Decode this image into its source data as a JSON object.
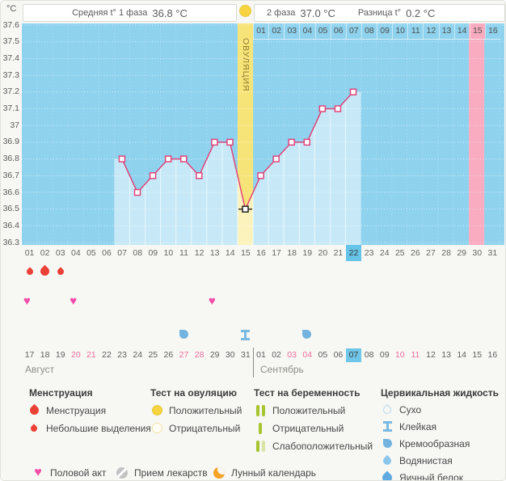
{
  "header": {
    "unit": "°C",
    "avg_phase1_label": "Средняя t° 1 фаза",
    "avg_phase1_value": "36.8 °C",
    "phase2_label": "2 фаза",
    "phase2_value": "37.0 °C",
    "diff_label": "Разница t°",
    "diff_value": "0.2 °C"
  },
  "chart_data": {
    "type": "line",
    "ylabel": "°C",
    "ylim": [
      36.3,
      37.6
    ],
    "y_ticks": [
      "37.6",
      "37.5",
      "37.4",
      "37.3",
      "37.2",
      "37.1",
      "37",
      "36.9",
      "36.8",
      "36.7",
      "36.6",
      "36.5",
      "36.4",
      "36.3"
    ],
    "grid": "dotted-white",
    "ovulation_label": "ОВУЛЯЦИЯ",
    "ovulation_day": 15,
    "predicted_period_day": 30,
    "current_day": 22,
    "cycle_days": [
      "01",
      "02",
      "03",
      "04",
      "05",
      "06",
      "07",
      "08",
      "09",
      "10",
      "11",
      "12",
      "13",
      "14",
      "15",
      "16",
      "17",
      "18",
      "19",
      "20",
      "21",
      "22",
      "23",
      "24",
      "25",
      "26",
      "27",
      "28",
      "29",
      "30",
      "31"
    ],
    "luteal_day_labels": [
      "01",
      "02",
      "03",
      "04",
      "05",
      "06",
      "07",
      "08",
      "09",
      "10",
      "11",
      "12",
      "13",
      "14",
      "15",
      "16"
    ],
    "luteal_highlight": "15",
    "temps": [
      {
        "day": 7,
        "temp": 36.8
      },
      {
        "day": 8,
        "temp": 36.6
      },
      {
        "day": 9,
        "temp": 36.7
      },
      {
        "day": 10,
        "temp": 36.8
      },
      {
        "day": 11,
        "temp": 36.8
      },
      {
        "day": 12,
        "temp": 36.7
      },
      {
        "day": 13,
        "temp": 36.9
      },
      {
        "day": 14,
        "temp": 36.9
      },
      {
        "day": 15,
        "temp": 36.5,
        "event": "ovulation"
      },
      {
        "day": 16,
        "temp": 36.7
      },
      {
        "day": 17,
        "temp": 36.8
      },
      {
        "day": 18,
        "temp": 36.9
      },
      {
        "day": 19,
        "temp": 36.9
      },
      {
        "day": 20,
        "temp": 37.1
      },
      {
        "day": 21,
        "temp": 37.1
      },
      {
        "day": 22,
        "temp": 37.2
      }
    ],
    "events": {
      "menstruation": [
        {
          "day": 1,
          "size": "small"
        },
        {
          "day": 2,
          "size": "large"
        },
        {
          "day": 3,
          "size": "small"
        }
      ],
      "intercourse_days": [
        1,
        4,
        13
      ],
      "cervical_fluid": [
        {
          "day": 11,
          "type": "creamy"
        },
        {
          "day": 15,
          "type": "sticky"
        },
        {
          "day": 19,
          "type": "creamy"
        }
      ]
    },
    "calendar": {
      "aug": {
        "label": "Август",
        "days": [
          "17",
          "18",
          "19",
          "20",
          "21",
          "22",
          "23",
          "24",
          "25",
          "26",
          "27",
          "28",
          "29",
          "30",
          "31"
        ],
        "weekend": [
          "20",
          "21",
          "27",
          "28"
        ]
      },
      "sep": {
        "label": "Сентябрь",
        "days": [
          "01",
          "02",
          "03",
          "04",
          "05",
          "06",
          "07",
          "08",
          "09",
          "10",
          "11",
          "12",
          "13",
          "14",
          "15",
          "16"
        ],
        "weekend": [
          "03",
          "04",
          "10",
          "11"
        ],
        "today": "07"
      }
    }
  },
  "legend": {
    "menstruation": {
      "title": "Менструация",
      "items": [
        {
          "icon": "drop-large",
          "label": "Менструация"
        },
        {
          "icon": "drop-small",
          "label": "Небольшие выделения"
        }
      ]
    },
    "ovulation_test": {
      "title": "Тест на овуляцию",
      "items": [
        {
          "icon": "test-positive",
          "label": "Положительный"
        },
        {
          "icon": "test-negative",
          "label": "Отрицательный"
        }
      ]
    },
    "pregnancy_test": {
      "title": "Тест на беременность",
      "items": [
        {
          "icon": "preg-positive",
          "label": "Положительный"
        },
        {
          "icon": "preg-negative",
          "label": "Отрицательный"
        },
        {
          "icon": "preg-weak",
          "label": "Слабоположительный"
        }
      ]
    },
    "cervical_fluid": {
      "title": "Цервикальная жидкость",
      "items": [
        {
          "icon": "fluid-dry",
          "label": "Сухо"
        },
        {
          "icon": "fluid-sticky",
          "label": "Клейкая"
        },
        {
          "icon": "fluid-creamy",
          "label": "Кремообразная"
        },
        {
          "icon": "fluid-watery",
          "label": "Водянистая"
        },
        {
          "icon": "fluid-eggwhite",
          "label": "Яичный белок"
        }
      ]
    },
    "bottom": [
      {
        "icon": "heart",
        "label": "Половой акт"
      },
      {
        "icon": "pill",
        "label": "Прием лекарств"
      },
      {
        "icon": "moon",
        "label": "Лунный календарь"
      }
    ]
  },
  "colors": {
    "chart_bg": "#8ed2ee",
    "area_fill": "rgba(255,255,255,0.5)",
    "line": "#e0457b",
    "ovulation_column": "#f7e478",
    "predicted_period_column": "#f9abc0",
    "today_highlight": "#65c4e8",
    "menstruation": "#ea4137",
    "intercourse": "#f04ca8",
    "ovulation_test_positive": "#f6d33f",
    "pregnancy_test": "#a6c52f",
    "cervical_fluid": "#72b4df",
    "moon": "#f6a227"
  }
}
